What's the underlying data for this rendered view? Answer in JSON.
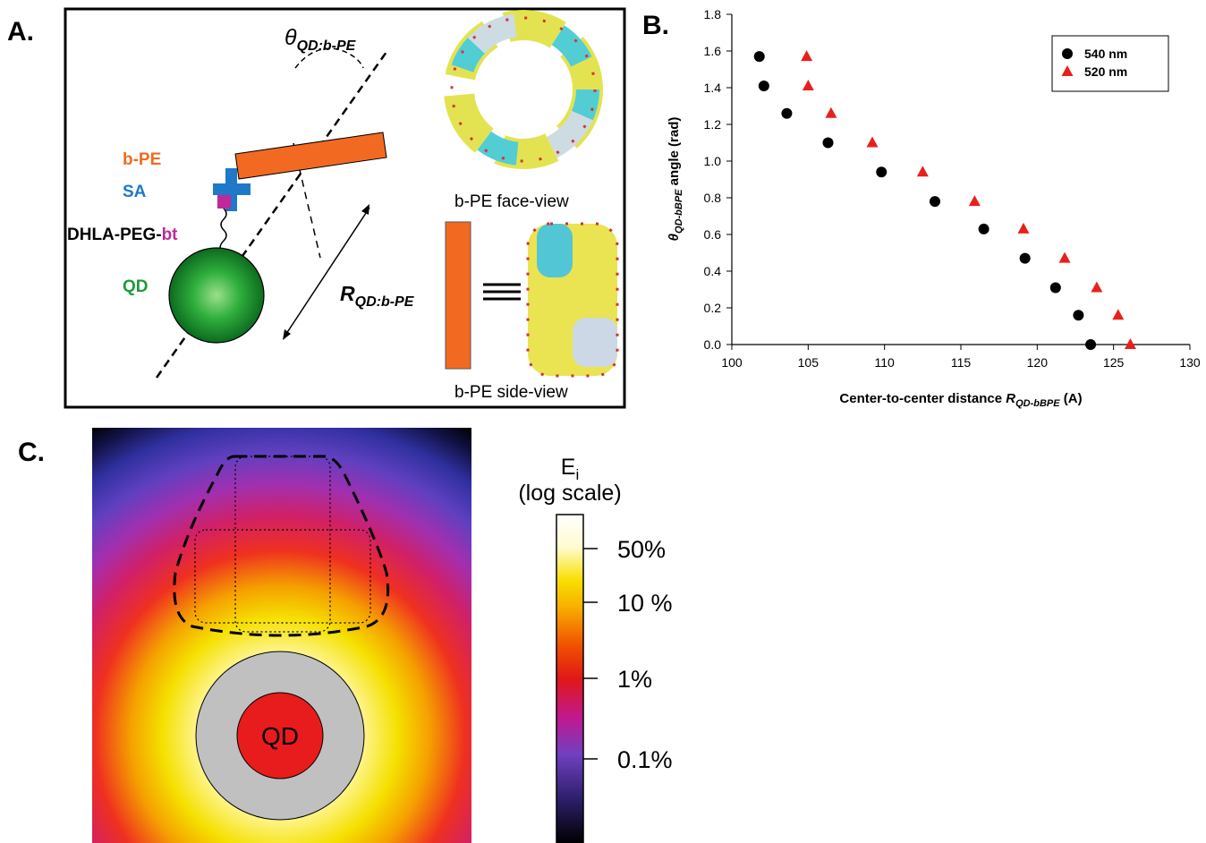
{
  "panel_a": {
    "label": "A.",
    "theta_symbol": "θ",
    "theta_sub": "QD:b-PE",
    "bpe": "b-PE",
    "sa": "SA",
    "linker": "DHLA-PEG-",
    "linker_bt": "bt",
    "qd": "QD",
    "r_symbol": "R",
    "r_sub": "QD:b-PE",
    "face_view": "b-PE face-view",
    "side_view": "b-PE side-view"
  },
  "chart_data": {
    "type": "scatter",
    "panel_label": "B.",
    "xlabel": "Center-to-center distance ",
    "xlabel_symbol": "R",
    "xlabel_sub": "QD-bBPE",
    "xlabel_unit": " (A)",
    "ylabel_symbol": "θ",
    "ylabel_sub": "QD-bBPE",
    "ylabel": " angle (rad)",
    "xlim": [
      100,
      130
    ],
    "xticks": [
      100,
      105,
      110,
      115,
      120,
      125,
      130
    ],
    "ylim": [
      0,
      1.8
    ],
    "yticks": [
      {
        "value": 0,
        "label": "0.0"
      },
      0.2,
      0.4,
      0.6,
      0.8,
      {
        "value": 1,
        "label": "1.0"
      },
      1.2,
      1.4,
      1.6,
      1.8
    ],
    "grid": false,
    "legend": "upper right",
    "series": [
      {
        "name": "540 nm",
        "color": "#000000",
        "marker": "circle",
        "x": [
          101.8,
          102.1,
          103.6,
          106.3,
          109.8,
          113.3,
          116.5,
          119.2,
          121.2,
          122.7,
          123.5
        ],
        "values": [
          1.57,
          1.41,
          1.26,
          1.1,
          0.94,
          0.78,
          0.63,
          0.47,
          0.31,
          0.16,
          0.0
        ]
      },
      {
        "name": "520 nm",
        "color": "#e8201c",
        "marker": "triangle",
        "x": [
          104.9,
          105.0,
          106.5,
          109.2,
          112.5,
          115.9,
          119.1,
          121.8,
          123.9,
          125.3,
          126.1
        ],
        "values": [
          1.57,
          1.41,
          1.26,
          1.1,
          0.94,
          0.78,
          0.63,
          0.47,
          0.31,
          0.16,
          0.0
        ]
      }
    ]
  },
  "panel_c": {
    "label": "C.",
    "qd": "QD",
    "colorbar_title": "E",
    "colorbar_title_sub": "i",
    "colorbar_subtitle": "(log scale)",
    "colorbar_ticks": [
      "50%",
      "10 %",
      "1%",
      "0.1%"
    ]
  }
}
